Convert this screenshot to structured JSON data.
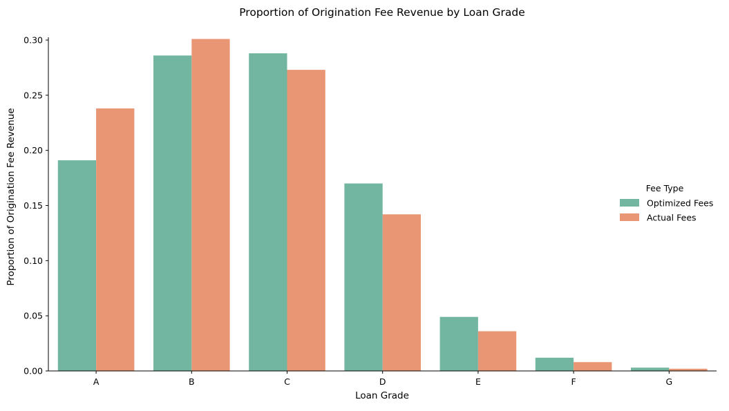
{
  "colors": {
    "optimized": "#72b6a1",
    "actual": "#e99675",
    "axis": "#000000",
    "background": "#ffffff"
  },
  "chart_data": {
    "type": "bar",
    "title": "Proportion of Origination Fee Revenue by Loan Grade",
    "xlabel": "Loan Grade",
    "ylabel": "Proportion of Origination Fee Revenue",
    "categories": [
      "A",
      "B",
      "C",
      "D",
      "E",
      "F",
      "G"
    ],
    "ylim": [
      0,
      0.3
    ],
    "yticks": [
      "0.00",
      "0.05",
      "0.10",
      "0.15",
      "0.20",
      "0.25",
      "0.30"
    ],
    "grid": false,
    "legend": {
      "title": "Fee Type",
      "placement": "right"
    },
    "series": [
      {
        "name": "Optimized Fees",
        "values": [
          0.191,
          0.286,
          0.288,
          0.17,
          0.049,
          0.012,
          0.003
        ]
      },
      {
        "name": "Actual Fees",
        "values": [
          0.238,
          0.301,
          0.273,
          0.142,
          0.036,
          0.008,
          0.002
        ]
      }
    ]
  }
}
